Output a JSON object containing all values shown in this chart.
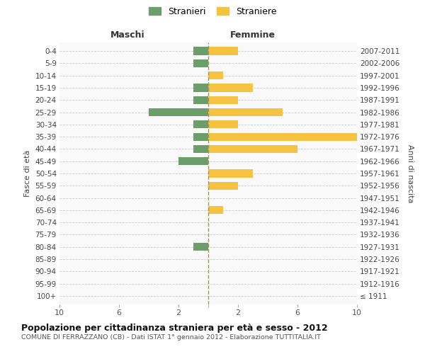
{
  "age_groups": [
    "100+",
    "95-99",
    "90-94",
    "85-89",
    "80-84",
    "75-79",
    "70-74",
    "65-69",
    "60-64",
    "55-59",
    "50-54",
    "45-49",
    "40-44",
    "35-39",
    "30-34",
    "25-29",
    "20-24",
    "15-19",
    "10-14",
    "5-9",
    "0-4"
  ],
  "birth_years": [
    "≤ 1911",
    "1912-1916",
    "1917-1921",
    "1922-1926",
    "1927-1931",
    "1932-1936",
    "1937-1941",
    "1942-1946",
    "1947-1951",
    "1952-1956",
    "1957-1961",
    "1962-1966",
    "1967-1971",
    "1972-1976",
    "1977-1981",
    "1982-1986",
    "1987-1991",
    "1992-1996",
    "1997-2001",
    "2002-2006",
    "2007-2011"
  ],
  "maschi": [
    0,
    0,
    0,
    0,
    1,
    0,
    0,
    0,
    0,
    0,
    0,
    2,
    1,
    1,
    1,
    4,
    1,
    1,
    0,
    1,
    1
  ],
  "femmine": [
    0,
    0,
    0,
    0,
    0,
    0,
    0,
    1,
    0,
    2,
    3,
    0,
    6,
    10,
    2,
    5,
    2,
    3,
    1,
    0,
    2
  ],
  "color_maschi": "#6b9e6b",
  "color_femmine": "#f5c242",
  "color_center_line": "#999966",
  "xlim": 10,
  "title": "Popolazione per cittadinanza straniera per età e sesso - 2012",
  "subtitle": "COMUNE DI FERRAZZANO (CB) - Dati ISTAT 1° gennaio 2012 - Elaborazione TUTTITALIA.IT",
  "xlabel_left": "Maschi",
  "xlabel_right": "Femmine",
  "ylabel_left": "Fasce di età",
  "ylabel_right": "Anni di nascita",
  "legend_maschi": "Stranieri",
  "legend_femmine": "Straniere",
  "background_color": "#f9f9f9",
  "grid_color": "#cccccc"
}
